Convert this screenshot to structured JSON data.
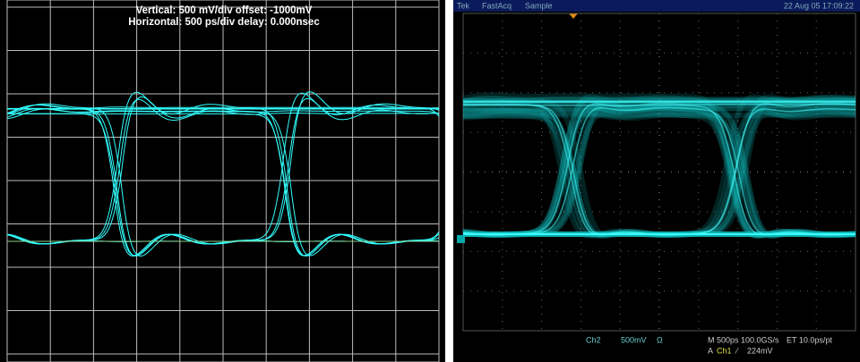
{
  "left_scope": {
    "vertical": "Vertical: 500 mV/div  offset: -1000mV",
    "horizontal": "Horizontal: 500 ps/div  delay: 0.000nsec"
  },
  "right_scope": {
    "header": {
      "brand": "Tek",
      "mode": "FastAcq",
      "acquire": "Sample",
      "timestamp": "22 Aug 05 17:09:22"
    },
    "footer": {
      "channel": "Ch2",
      "scale": "500mV",
      "coupling": "Ω",
      "timebase": "M 500ps 100.0GS/s",
      "resolution": "ET 10.0ps/pt",
      "trigger_label": "A",
      "trigger_source": "Ch1",
      "trigger_slope": "⁄",
      "trigger_level": "224mV"
    }
  }
}
